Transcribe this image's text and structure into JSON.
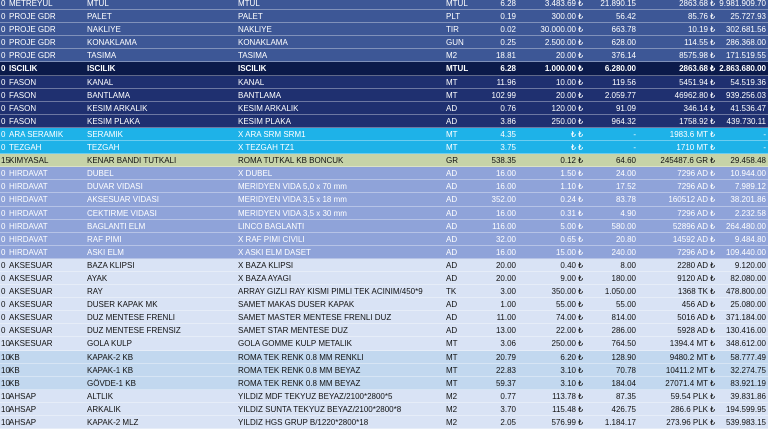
{
  "rows": [
    {
      "style": "navy",
      "cells": [
        "0",
        "METREYUL",
        "MTUL",
        "MTUL",
        "MTUL",
        "6.28",
        "3.483.69",
        "₺",
        "21.890.15",
        "2863.68",
        "₺",
        "9.981.909.70"
      ]
    },
    {
      "style": "navy",
      "cells": [
        "0",
        "PROJE GDR",
        "PALET",
        "PALET",
        "PLT",
        "0.19",
        "300.00",
        "₺",
        "56.42",
        "85.76",
        "₺",
        "25.727.93"
      ]
    },
    {
      "style": "navy",
      "cells": [
        "0",
        "PROJE GDR",
        "NAKLIYE",
        "NAKLIYE",
        "TIR",
        "0.02",
        "30.000.00",
        "₺",
        "663.78",
        "10.19",
        "₺",
        "302.681.56"
      ]
    },
    {
      "style": "navy",
      "cells": [
        "0",
        "PROJE GDR",
        "KONAKLAMA",
        "KONAKLAMA",
        "GUN",
        "0.25",
        "2.500.00",
        "₺",
        "628.00",
        "114.55",
        "₺",
        "286.368.00"
      ]
    },
    {
      "style": "navy",
      "cells": [
        "0",
        "PROJE GDR",
        "TASIMA",
        "TASIMA",
        "M2",
        "18.81",
        "20.00",
        "₺",
        "376.14",
        "8575.98",
        "₺",
        "171.519.55"
      ]
    },
    {
      "style": "dark",
      "cells": [
        "0",
        "ISCILIK",
        "ISCILIK",
        "ISCILIK",
        "MTUL",
        "6.28",
        "1.000.00",
        "₺",
        "6.280.00",
        "2863.68",
        "₺",
        "2.863.680.00"
      ]
    },
    {
      "style": "deep",
      "cells": [
        "0",
        "FASON",
        "KANAL",
        "KANAL",
        "MT",
        "11.96",
        "10.00",
        "₺",
        "119.56",
        "5451.94",
        "₺",
        "54.519.36"
      ]
    },
    {
      "style": "deep",
      "cells": [
        "0",
        "FASON",
        "BANTLAMA",
        "BANTLAMA",
        "MT",
        "102.99",
        "20.00",
        "₺",
        "2.059.77",
        "46962.80",
        "₺",
        "939.256.03"
      ]
    },
    {
      "style": "deep",
      "cells": [
        "0",
        "FASON",
        "KESIM ARKALIK",
        "KESIM ARKALIK",
        "AD",
        "0.76",
        "120.00",
        "₺",
        "91.09",
        "346.14",
        "₺",
        "41.536.47"
      ]
    },
    {
      "style": "deep",
      "cells": [
        "0",
        "FASON",
        "KESIM PLAKA",
        "KESIM PLAKA",
        "AD",
        "3.86",
        "250.00",
        "₺",
        "964.32",
        "1758.92",
        "₺",
        "439.730.11"
      ]
    },
    {
      "style": "cyan",
      "cells": [
        "0",
        "ARA SERAMIK",
        "SERAMIK",
        "X ARA SRM SRM1",
        "MT",
        "4.35",
        "₺",
        "₺",
        "-",
        "1983.6 MT",
        "₺",
        "-"
      ]
    },
    {
      "style": "cyan",
      "cells": [
        "0",
        "TEZGAH",
        "TEZGAH",
        "X TEZGAH TZ1",
        "MT",
        "3.75",
        "₺",
        "₺",
        "-",
        "1710 MT",
        "₺",
        "-"
      ]
    },
    {
      "style": "olive",
      "cells": [
        "15",
        "KIMYASAL",
        "KENAR BANDI TUTKALI",
        "ROMA TUTKAL KB BONCUK",
        "GR",
        "538.35",
        "0.12",
        "₺",
        "64.60",
        "245487.6 GR",
        "₺",
        "29.458.48"
      ]
    },
    {
      "style": "period",
      "cells": [
        "0",
        "HIRDAVAT",
        "DUBEL",
        "X DUBEL",
        "AD",
        "16.00",
        "1.50",
        "₺",
        "24.00",
        "7296 AD",
        "₺",
        "10.944.00"
      ]
    },
    {
      "style": "period",
      "cells": [
        "0",
        "HIRDAVAT",
        "DUVAR VIDASI",
        "MERIDYEN VIDA 5,0 x 70 mm",
        "AD",
        "16.00",
        "1.10",
        "₺",
        "17.52",
        "7296 AD",
        "₺",
        "7.989.12"
      ]
    },
    {
      "style": "period",
      "cells": [
        "0",
        "HIRDAVAT",
        "AKSESUAR VIDASI",
        "MERIDYEN VIDA 3,5 x 18 mm",
        "AD",
        "352.00",
        "0.24",
        "₺",
        "83.78",
        "160512 AD",
        "₺",
        "38.201.86"
      ]
    },
    {
      "style": "period",
      "cells": [
        "0",
        "HIRDAVAT",
        "CEKTIRME VIDASI",
        "MERIDYEN VIDA 3,5 x 30 mm",
        "AD",
        "16.00",
        "0.31",
        "₺",
        "4.90",
        "7296 AD",
        "₺",
        "2.232.58"
      ]
    },
    {
      "style": "period",
      "cells": [
        "0",
        "HIRDAVAT",
        "BAGLANTI ELM",
        "LINCO BAGLANTI",
        "AD",
        "116.00",
        "5.00",
        "₺",
        "580.00",
        "52896 AD",
        "₺",
        "264.480.00"
      ]
    },
    {
      "style": "period",
      "cells": [
        "0",
        "HIRDAVAT",
        "RAF PIMI",
        "X RAF PIMI CIVILI",
        "AD",
        "32.00",
        "0.65",
        "₺",
        "20.80",
        "14592 AD",
        "₺",
        "9.484.80"
      ]
    },
    {
      "style": "period",
      "cells": [
        "0",
        "HIRDAVAT",
        "ASKI ELM",
        "X ASKI ELM DASET",
        "AD",
        "16.00",
        "15.00",
        "₺",
        "240.00",
        "7296 AD",
        "₺",
        "109.440.00"
      ]
    },
    {
      "style": "light",
      "cells": [
        "0",
        "AKSESUAR",
        "BAZA KLIPSI",
        "X BAZA KLIPSI",
        "AD",
        "20.00",
        "0.40",
        "₺",
        "8.00",
        "2280 AD",
        "₺",
        "9.120.00"
      ]
    },
    {
      "style": "light",
      "cells": [
        "0",
        "AKSESUAR",
        "AYAK",
        "X BAZA AYAGI",
        "AD",
        "20.00",
        "9.00",
        "₺",
        "180.00",
        "9120 AD",
        "₺",
        "82.080.00"
      ]
    },
    {
      "style": "light",
      "cells": [
        "0",
        "AKSESUAR",
        "RAY",
        "ARRAY GIZLI RAY KISMI PIMLI TEK ACINIM/450*9",
        "TK",
        "3.00",
        "350.00",
        "₺",
        "1.050.00",
        "1368 TK",
        "₺",
        "478.800.00"
      ]
    },
    {
      "style": "light",
      "cells": [
        "0",
        "AKSESUAR",
        "DUSER KAPAK MK",
        "SAMET MAKAS DUSER KAPAK",
        "AD",
        "1.00",
        "55.00",
        "₺",
        "55.00",
        "456 AD",
        "₺",
        "25.080.00"
      ]
    },
    {
      "style": "light",
      "cells": [
        "0",
        "AKSESUAR",
        "DUZ MENTESE FRENLI",
        "SAMET MASTER MENTESE FRENLI DUZ",
        "AD",
        "11.00",
        "74.00",
        "₺",
        "814.00",
        "5016 AD",
        "₺",
        "371.184.00"
      ]
    },
    {
      "style": "light",
      "cells": [
        "0",
        "AKSESUAR",
        "DUZ MENTESE FRENSIZ",
        "SAMET STAR MENTESE DUZ",
        "AD",
        "13.00",
        "22.00",
        "₺",
        "286.00",
        "5928 AD",
        "₺",
        "130.416.00"
      ]
    },
    {
      "style": "light",
      "cells": [
        "10",
        "AKSESUAR",
        "GOLA KULP",
        "GOLA GOMME KULP  METALIK",
        "MT",
        "3.06",
        "250.00",
        "₺",
        "764.50",
        "1394.4 MT",
        "₺",
        "348.612.00"
      ]
    },
    {
      "style": "sky",
      "cells": [
        "10",
        "KB",
        "KAPAK-2 KB",
        "ROMA TEK RENK 0.8 MM RENKLI",
        "MT",
        "20.79",
        "6.20",
        "₺",
        "128.90",
        "9480.2 MT",
        "₺",
        "58.777.49"
      ]
    },
    {
      "style": "sky",
      "cells": [
        "10",
        "KB",
        "KAPAK-1 KB",
        "ROMA TEK RENK 0.8 MM BEYAZ",
        "MT",
        "22.83",
        "3.10",
        "₺",
        "70.78",
        "10411.2 MT",
        "₺",
        "32.274.75"
      ]
    },
    {
      "style": "sky",
      "cells": [
        "10",
        "KB",
        "GÖVDE-1 KB",
        "ROMA TEK RENK 0.8 MM BEYAZ",
        "MT",
        "59.37",
        "3.10",
        "₺",
        "184.04",
        "27071.4 MT",
        "₺",
        "83.921.19"
      ]
    },
    {
      "style": "light",
      "cells": [
        "10",
        "AHSAP",
        "ALTLIK",
        "YILDIZ MDF TEKYUZ BEYAZ/2100*2800*5",
        "M2",
        "0.77",
        "113.78",
        "₺",
        "87.35",
        "59.54 PLK",
        "₺",
        "39.831.86"
      ]
    },
    {
      "style": "light",
      "cells": [
        "10",
        "AHSAP",
        "ARKALIK",
        "YILDIZ SUNTA TEKYUZ BEYAZ/2100*2800*8",
        "M2",
        "3.70",
        "115.48",
        "₺",
        "426.75",
        "286.6 PLK",
        "₺",
        "194.599.95"
      ]
    },
    {
      "style": "light",
      "cells": [
        "10",
        "AHSAP",
        "KAPAK-2 MLZ",
        "YILDIZ HGS  GRUP B/1220*2800*18",
        "M2",
        "2.05",
        "576.99",
        "₺",
        "1.184.17",
        "273.96 PLK",
        "₺",
        "539.983.15"
      ]
    }
  ]
}
